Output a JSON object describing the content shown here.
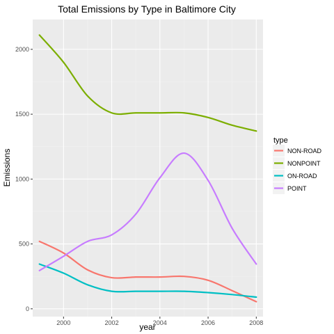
{
  "chart_data": {
    "type": "line",
    "title": "Total Emissions by Type in Baltimore City",
    "xlabel": "year",
    "ylabel": "Emissions",
    "xlim": [
      1998.72,
      2008.28
    ],
    "ylim": [
      -60,
      2230
    ],
    "x_ticks": [
      2000,
      2002,
      2004,
      2006,
      2008
    ],
    "y_ticks": [
      0,
      500,
      1000,
      1500,
      2000
    ],
    "grid": true,
    "legend": {
      "title": "type",
      "placement": "right",
      "entries": [
        "NON-ROAD",
        "NONPOINT",
        "ON-ROAD",
        "POINT"
      ]
    },
    "x": [
      1999,
      2000,
      2001,
      2002,
      2003,
      2004,
      2005,
      2006,
      2007,
      2008
    ],
    "series": [
      {
        "name": "NON-ROAD",
        "color": "#F8766D",
        "values": [
          520,
          430,
          300,
          240,
          245,
          245,
          250,
          220,
          140,
          55
        ]
      },
      {
        "name": "NONPOINT",
        "color": "#7CAE00",
        "values": [
          2110,
          1900,
          1640,
          1510,
          1510,
          1510,
          1510,
          1475,
          1415,
          1370
        ]
      },
      {
        "name": "ON-ROAD",
        "color": "#00BFC4",
        "values": [
          345,
          275,
          185,
          135,
          135,
          135,
          135,
          125,
          110,
          90
        ]
      },
      {
        "name": "POINT",
        "color": "#C77CFF",
        "values": [
          295,
          405,
          520,
          570,
          730,
          1010,
          1200,
          990,
          620,
          345
        ]
      }
    ]
  }
}
